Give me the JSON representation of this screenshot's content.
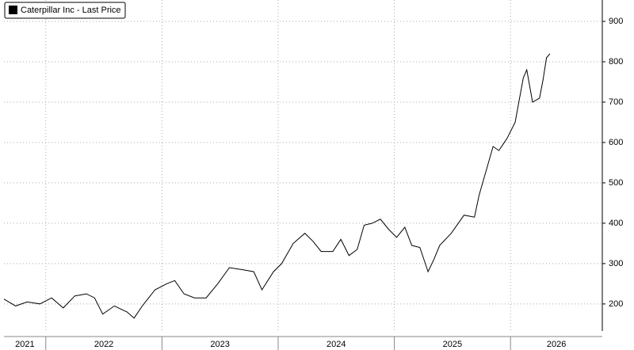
{
  "chart_data": {
    "type": "line",
    "series": [
      {
        "name": "Caterpillar Inc - Last Price",
        "color": "#000000",
        "values": [
          212,
          195,
          205,
          200,
          215,
          190,
          220,
          225,
          215,
          175,
          195,
          180,
          165,
          195,
          235,
          250,
          258,
          225,
          215,
          215,
          250,
          290,
          285,
          280,
          235,
          280,
          300,
          350,
          375,
          355,
          330,
          330,
          360,
          320,
          335,
          395,
          400,
          410,
          385,
          365,
          390,
          345,
          340,
          280,
          310,
          345,
          375,
          420,
          415,
          470,
          540,
          590,
          580,
          610,
          650,
          760,
          780,
          700,
          710,
          755,
          810,
          820
        ]
      }
    ],
    "x": [
      2021.64,
      2021.74,
      2021.84,
      2021.95,
      2022.05,
      2022.15,
      2022.25,
      2022.35,
      2022.42,
      2022.49,
      2022.59,
      2022.7,
      2022.76,
      2022.83,
      2022.94,
      2023.04,
      2023.11,
      2023.19,
      2023.28,
      2023.38,
      2023.48,
      2023.58,
      2023.69,
      2023.79,
      2023.86,
      2023.96,
      2024.03,
      2024.13,
      2024.23,
      2024.3,
      2024.37,
      2024.47,
      2024.54,
      2024.61,
      2024.68,
      2024.74,
      2024.81,
      2024.88,
      2024.95,
      2025.02,
      2025.09,
      2025.15,
      2025.22,
      2025.29,
      2025.34,
      2025.39,
      2025.49,
      2025.6,
      2025.69,
      2025.73,
      2025.8,
      2025.85,
      2025.9,
      2025.97,
      2026.04,
      2026.11,
      2026.14,
      2026.19,
      2026.25,
      2026.28,
      2026.31,
      2026.34
    ],
    "xlim": [
      2021.64,
      2026.79
    ],
    "xticks": [
      2022,
      2023,
      2024,
      2025,
      2026
    ],
    "x_labels": [
      "2021",
      "2022",
      "2023",
      "2024",
      "2025",
      "2026"
    ],
    "ylim": [
      133,
      953
    ],
    "yticks": [
      200,
      300,
      400,
      500,
      600,
      700,
      800,
      900
    ],
    "grid": true,
    "legend": "upper left"
  }
}
